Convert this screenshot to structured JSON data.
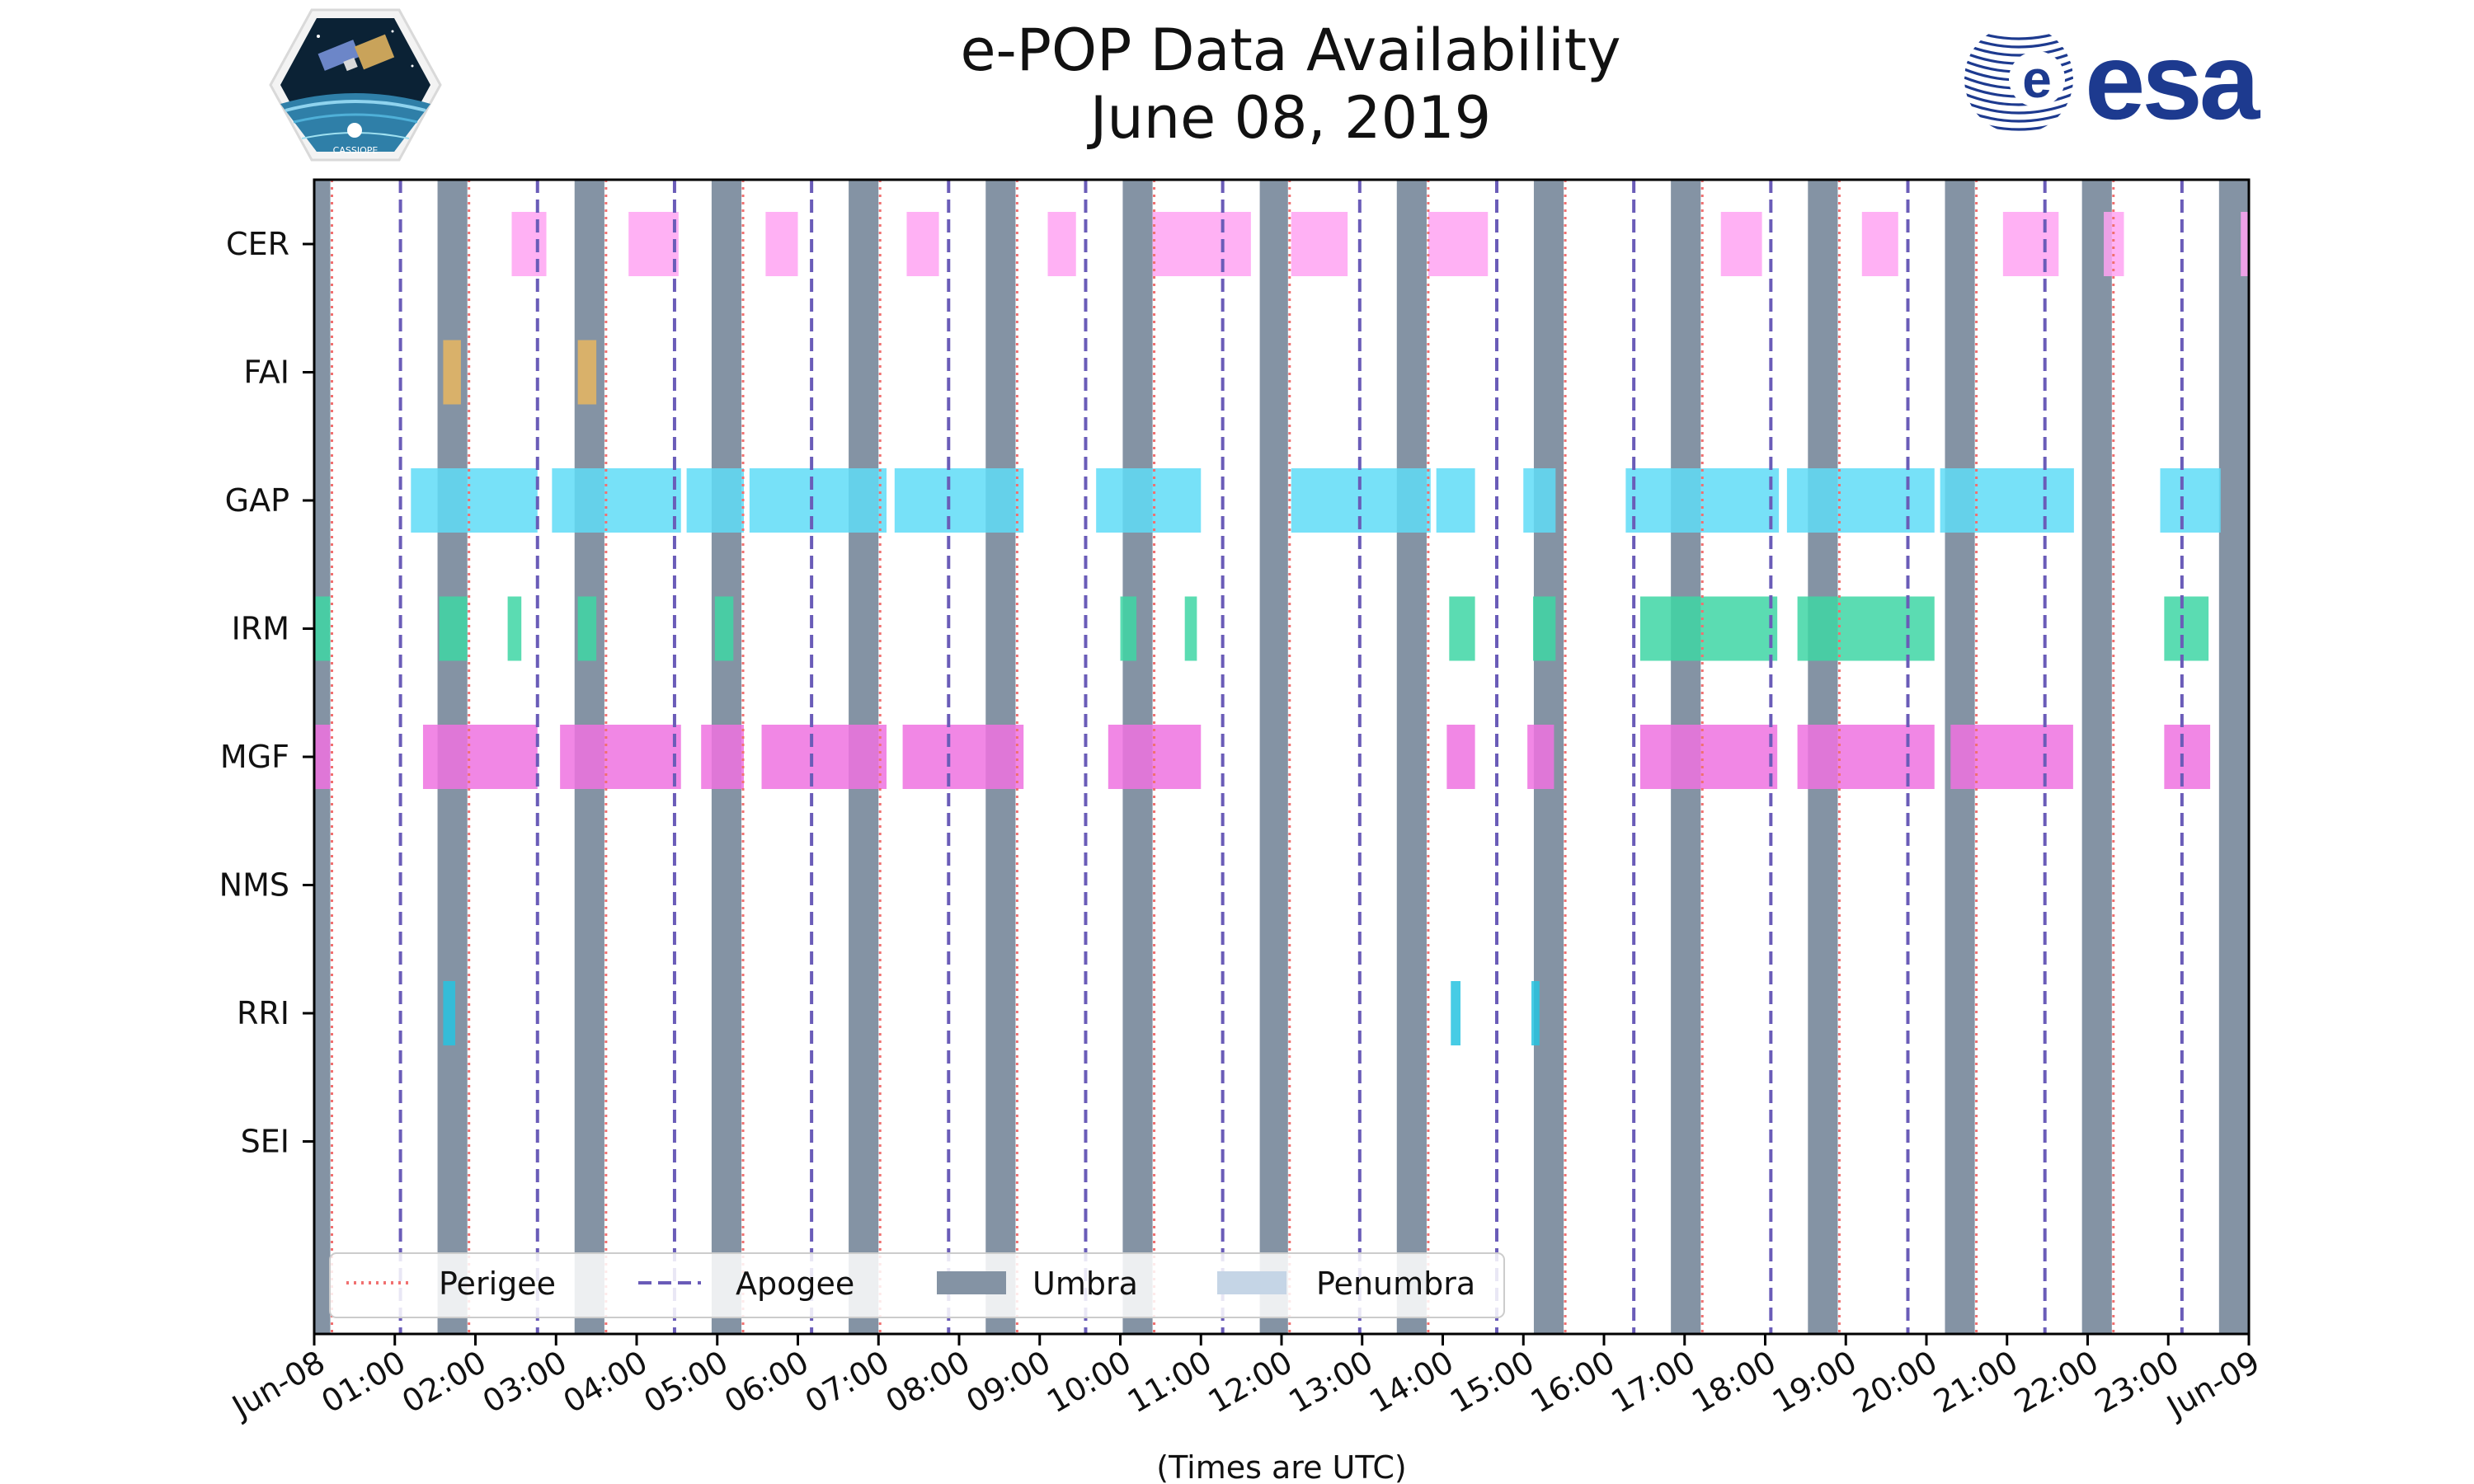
{
  "chart_data": {
    "type": "timeline",
    "title": "e-POP Data Availability",
    "subtitle": "June 08, 2019",
    "xlabel": "(Times are UTC)",
    "xlim": [
      0,
      24
    ],
    "xticks": [
      {
        "h": 0,
        "label": "Jun-08"
      },
      {
        "h": 1,
        "label": "01:00"
      },
      {
        "h": 2,
        "label": "02:00"
      },
      {
        "h": 3,
        "label": "03:00"
      },
      {
        "h": 4,
        "label": "04:00"
      },
      {
        "h": 5,
        "label": "05:00"
      },
      {
        "h": 6,
        "label": "06:00"
      },
      {
        "h": 7,
        "label": "07:00"
      },
      {
        "h": 8,
        "label": "08:00"
      },
      {
        "h": 9,
        "label": "09:00"
      },
      {
        "h": 10,
        "label": "10:00"
      },
      {
        "h": 11,
        "label": "11:00"
      },
      {
        "h": 12,
        "label": "12:00"
      },
      {
        "h": 13,
        "label": "13:00"
      },
      {
        "h": 14,
        "label": "14:00"
      },
      {
        "h": 15,
        "label": "15:00"
      },
      {
        "h": 16,
        "label": "16:00"
      },
      {
        "h": 17,
        "label": "17:00"
      },
      {
        "h": 18,
        "label": "18:00"
      },
      {
        "h": 19,
        "label": "19:00"
      },
      {
        "h": 20,
        "label": "20:00"
      },
      {
        "h": 21,
        "label": "21:00"
      },
      {
        "h": 22,
        "label": "22:00"
      },
      {
        "h": 23,
        "label": "23:00"
      },
      {
        "h": 24,
        "label": "Jun-09"
      }
    ],
    "instruments": [
      "CER",
      "FAI",
      "GAP",
      "IRM",
      "MGF",
      "NMS",
      "RRI",
      "SEI"
    ],
    "colors": {
      "CER": "#ffa3f2",
      "FAI": "#e8b660",
      "GAP": "#5fdcf7",
      "IRM": "#3ed6a5",
      "MGF": "#ee72e0",
      "NMS": "#9e9e9e",
      "RRI": "#27c3e0",
      "SEI": "#9e9e9e",
      "umbra": "#8493a4",
      "penumbra": "#c5d5e6",
      "perigee": "#f07070",
      "apogee": "#6a5cb8"
    },
    "umbra": [
      [
        0,
        0.2
      ],
      [
        1.53,
        1.9
      ],
      [
        3.23,
        3.6
      ],
      [
        4.93,
        5.3
      ],
      [
        6.63,
        7.0
      ],
      [
        8.33,
        8.7
      ],
      [
        10.03,
        10.4
      ],
      [
        11.73,
        12.08
      ],
      [
        13.43,
        13.8
      ],
      [
        15.13,
        15.5
      ],
      [
        16.83,
        17.2
      ],
      [
        18.53,
        18.9
      ],
      [
        20.23,
        20.6
      ],
      [
        21.93,
        22.3
      ],
      [
        23.63,
        24.0
      ]
    ],
    "perigee": [
      0.22,
      1.92,
      3.62,
      5.32,
      7.02,
      8.72,
      10.42,
      12.1,
      13.82,
      15.52,
      17.22,
      18.92,
      20.62,
      22.32,
      24.02
    ],
    "apogee": [
      1.07,
      2.77,
      4.47,
      6.17,
      7.87,
      9.57,
      11.27,
      12.97,
      14.67,
      16.37,
      18.07,
      19.77,
      21.47,
      23.17
    ],
    "series": {
      "CER": [
        [
          2.45,
          2.88
        ],
        [
          3.9,
          4.52
        ],
        [
          5.6,
          6.0
        ],
        [
          7.35,
          7.75
        ],
        [
          9.1,
          9.45
        ],
        [
          10.4,
          11.62
        ],
        [
          12.12,
          12.82
        ],
        [
          13.82,
          14.56
        ],
        [
          17.45,
          17.96
        ],
        [
          19.2,
          19.65
        ],
        [
          20.95,
          21.64
        ],
        [
          22.2,
          22.45
        ],
        [
          23.9,
          24.0
        ]
      ],
      "FAI": [
        [
          1.6,
          1.82
        ],
        [
          3.27,
          3.5
        ]
      ],
      "GAP": [
        [
          1.2,
          2.77
        ],
        [
          2.95,
          4.55
        ],
        [
          4.62,
          5.33
        ],
        [
          5.4,
          7.1
        ],
        [
          7.2,
          8.8
        ],
        [
          9.7,
          11.0
        ],
        [
          12.12,
          13.85
        ],
        [
          13.92,
          14.4
        ],
        [
          15.0,
          15.4
        ],
        [
          16.27,
          18.17
        ],
        [
          18.27,
          20.1
        ],
        [
          20.17,
          21.83
        ],
        [
          22.9,
          23.65
        ]
      ],
      "IRM": [
        [
          0,
          0.2
        ],
        [
          1.55,
          1.9
        ],
        [
          2.4,
          2.57
        ],
        [
          3.27,
          3.5
        ],
        [
          4.97,
          5.2
        ],
        [
          10.0,
          10.2
        ],
        [
          10.8,
          10.95
        ],
        [
          14.08,
          14.4
        ],
        [
          15.12,
          15.4
        ],
        [
          16.45,
          18.15
        ],
        [
          18.4,
          20.1
        ],
        [
          22.95,
          23.5
        ]
      ],
      "MGF": [
        [
          0,
          0.2
        ],
        [
          1.35,
          2.77
        ],
        [
          3.05,
          4.55
        ],
        [
          4.8,
          5.33
        ],
        [
          5.55,
          7.1
        ],
        [
          7.3,
          8.8
        ],
        [
          9.85,
          11.0
        ],
        [
          14.05,
          14.4
        ],
        [
          15.05,
          15.38
        ],
        [
          16.45,
          18.15
        ],
        [
          18.4,
          20.1
        ],
        [
          20.3,
          21.82
        ],
        [
          22.95,
          23.52
        ]
      ],
      "NMS": [],
      "RRI": [
        [
          1.6,
          1.75
        ],
        [
          14.1,
          14.22
        ],
        [
          15.1,
          15.2
        ]
      ],
      "SEI": []
    },
    "legend": {
      "position": "lower-left",
      "entries": [
        "Perigee",
        "Apogee",
        "Umbra",
        "Penumbra"
      ]
    }
  },
  "logos": {
    "left_badge": "CASSIOPE",
    "right_brand": "esa"
  }
}
